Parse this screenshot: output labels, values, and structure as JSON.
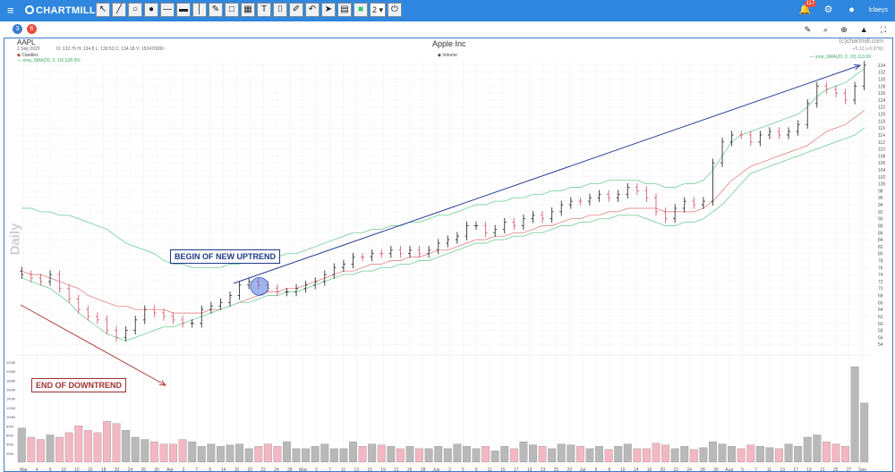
{
  "app": {
    "logo": "CHARTMILL"
  },
  "toolbar": {
    "tools": [
      {
        "name": "select-tool",
        "glyph": "↖"
      },
      {
        "name": "line-tool",
        "glyph": "╱"
      },
      {
        "name": "circle-tool",
        "glyph": "○"
      },
      {
        "name": "disc-tool",
        "glyph": "●"
      },
      {
        "name": "hline-tool",
        "glyph": "—"
      },
      {
        "name": "segment-tool",
        "glyph": "▬"
      },
      {
        "name": "vline-tool",
        "glyph": "│"
      },
      {
        "name": "pencil-tool",
        "glyph": "✎"
      },
      {
        "name": "rect-tool",
        "glyph": "□"
      },
      {
        "name": "fill-tool",
        "glyph": "▦"
      },
      {
        "name": "text-tool",
        "glyph": "T"
      },
      {
        "name": "label-tool",
        "glyph": "⌷"
      },
      {
        "name": "arrow-tool",
        "glyph": "✐"
      },
      {
        "name": "undo-tool",
        "glyph": "↶"
      },
      {
        "name": "marker-tool",
        "glyph": "➤"
      },
      {
        "name": "save-tool",
        "glyph": "▤"
      },
      {
        "name": "color-tool",
        "glyph": "■"
      }
    ],
    "timeframe": "2",
    "power_glyph": "⏻"
  },
  "topright": {
    "notifications": "117",
    "user": "lclaeys"
  },
  "subbar": {
    "chip1": "3",
    "chip2": "6"
  },
  "chart": {
    "ticker": "AAPL",
    "date": "1 Sep 2020",
    "ohlc": "O: 132.76  H: 134.8  L: 130.53  C: 134.18    V: 152470000",
    "title": "Apple Inc",
    "copyright": "(c)chartmill.com",
    "priceinfo": "+5.12 (+3.97%)",
    "legend_candles": "Candles",
    "legend_sma": "— sma_SMA(20, 2, 10) 128.9%",
    "legend_volume": "Volume",
    "legend_right": "— sma_SMA(20, 2, 10) 113.69",
    "watermark": "Daily",
    "annotation_up": "BEGIN OF NEW UPTREND",
    "annotation_down": "END OF DOWNTREND",
    "colors": {
      "up": "#333333",
      "down": "#d9607a",
      "vol_up": "#b9b9b9",
      "vol_down": "#f2b7c2",
      "bb_outer": "#7fd3a0",
      "bb_mid": "#e07070",
      "arrow_up": "#2c3e9a",
      "arrow_down": "#b03a3a"
    }
  },
  "chart_data": {
    "type": "candlestick",
    "title": "Apple Inc",
    "x_labels": [
      "Mar",
      "4",
      "6",
      "10",
      "12",
      "16",
      "18",
      "20",
      "24",
      "26",
      "30",
      "Apr",
      "3",
      "7",
      "9",
      "14",
      "16",
      "20",
      "22",
      "24",
      "28",
      "May",
      "5",
      "7",
      "11",
      "13",
      "15",
      "19",
      "21",
      "26",
      "28",
      "Jun",
      "3",
      "5",
      "9",
      "11",
      "15",
      "17",
      "19",
      "23",
      "25",
      "29",
      "Jul",
      "6",
      "8",
      "10",
      "14",
      "16",
      "20",
      "22",
      "24",
      "28",
      "30",
      "Aug",
      "5",
      "7",
      "11",
      "13",
      "17",
      "19",
      "21",
      "25",
      "27",
      "Sep"
    ],
    "y_ticks": [
      54,
      56,
      58,
      60,
      62,
      64,
      66,
      68,
      70,
      72,
      74,
      76,
      78,
      80,
      82,
      84,
      86,
      88,
      90,
      92,
      94,
      96,
      98,
      100,
      102,
      104,
      106,
      108,
      110,
      112,
      114,
      116,
      118,
      120,
      122,
      124,
      126,
      128,
      130,
      132,
      134
    ],
    "ylim": [
      52,
      135
    ],
    "volume_ticks": [
      "20M",
      "40M",
      "60M",
      "80M",
      "100M",
      "120M",
      "140M",
      "160M",
      "180M",
      "200M",
      "220M"
    ],
    "close": [
      74,
      73,
      72,
      74,
      70,
      67,
      64,
      62,
      61,
      58,
      56,
      58,
      61,
      64,
      63,
      62,
      61,
      60,
      60,
      64,
      65,
      66,
      68,
      71,
      72,
      71,
      70,
      69,
      69,
      70,
      71,
      72,
      74,
      76,
      77,
      79,
      79,
      80,
      80,
      81,
      80,
      81,
      80,
      81,
      83,
      84,
      85,
      88,
      88,
      86,
      87,
      89,
      88,
      90,
      91,
      90,
      92,
      94,
      95,
      95,
      96,
      97,
      96,
      97,
      99,
      98,
      96,
      92,
      90,
      93,
      95,
      94,
      95,
      106,
      112,
      114,
      114,
      112,
      114,
      115,
      114,
      115,
      117,
      123,
      128,
      127,
      126,
      124,
      128,
      134
    ],
    "up": [
      1,
      0,
      0,
      1,
      0,
      0,
      0,
      0,
      0,
      0,
      0,
      1,
      1,
      1,
      0,
      0,
      0,
      0,
      1,
      1,
      1,
      1,
      1,
      1,
      1,
      0,
      0,
      0,
      1,
      1,
      1,
      1,
      1,
      1,
      1,
      1,
      0,
      1,
      0,
      1,
      0,
      1,
      0,
      1,
      1,
      1,
      1,
      1,
      1,
      0,
      1,
      1,
      0,
      1,
      1,
      0,
      1,
      1,
      1,
      0,
      1,
      1,
      0,
      1,
      1,
      0,
      0,
      0,
      0,
      1,
      1,
      0,
      1,
      1,
      1,
      1,
      0,
      0,
      1,
      1,
      0,
      1,
      1,
      1,
      1,
      0,
      0,
      0,
      1,
      1
    ],
    "volume": [
      75,
      55,
      50,
      60,
      55,
      65,
      80,
      70,
      65,
      90,
      85,
      70,
      55,
      50,
      45,
      40,
      40,
      50,
      45,
      35,
      40,
      35,
      38,
      40,
      30,
      35,
      40,
      35,
      45,
      30,
      30,
      35,
      40,
      30,
      30,
      45,
      35,
      40,
      38,
      35,
      30,
      35,
      30,
      30,
      35,
      30,
      40,
      35,
      30,
      35,
      25,
      35,
      30,
      45,
      38,
      35,
      30,
      40,
      38,
      35,
      30,
      35,
      28,
      35,
      40,
      30,
      30,
      42,
      38,
      30,
      35,
      28,
      32,
      45,
      40,
      35,
      30,
      38,
      35,
      32,
      30,
      40,
      35,
      55,
      60,
      45,
      40,
      35,
      210,
      130
    ],
    "bb_upper": [
      93,
      93,
      92,
      92,
      91,
      91,
      90,
      89,
      88,
      87,
      85,
      83,
      82,
      81,
      80,
      78,
      77,
      77,
      76,
      76,
      76,
      76,
      77,
      77,
      78,
      78,
      79,
      79,
      80,
      80,
      81,
      82,
      83,
      84,
      85,
      86,
      86,
      87,
      87,
      88,
      88,
      89,
      89,
      90,
      91,
      91,
      92,
      93,
      94,
      94,
      95,
      95,
      96,
      96,
      97,
      97,
      98,
      98,
      99,
      99,
      100,
      100,
      101,
      101,
      101,
      101,
      100,
      100,
      99,
      99,
      100,
      100,
      101,
      104,
      108,
      112,
      114,
      115,
      116,
      117,
      118,
      119,
      120,
      122,
      125,
      127,
      128,
      129,
      131,
      133
    ],
    "bb_mid": [
      75,
      74,
      74,
      73,
      72,
      71,
      70,
      68,
      67,
      66,
      65,
      65,
      64,
      64,
      64,
      64,
      63,
      63,
      63,
      63,
      64,
      64,
      65,
      66,
      67,
      68,
      69,
      69,
      70,
      70,
      71,
      72,
      73,
      74,
      75,
      75,
      76,
      77,
      77,
      78,
      78,
      79,
      79,
      80,
      81,
      81,
      82,
      83,
      84,
      84,
      85,
      85,
      86,
      86,
      87,
      88,
      88,
      89,
      90,
      90,
      91,
      91,
      92,
      92,
      93,
      93,
      93,
      93,
      92,
      92,
      92,
      92,
      93,
      95,
      98,
      101,
      103,
      105,
      106,
      107,
      108,
      109,
      110,
      111,
      113,
      115,
      116,
      117,
      119,
      121
    ],
    "bb_lower": [
      73,
      72,
      71,
      70,
      68,
      66,
      63,
      61,
      59,
      57,
      56,
      55,
      56,
      57,
      58,
      59,
      59,
      60,
      61,
      62,
      63,
      64,
      65,
      66,
      66,
      67,
      68,
      68,
      69,
      69,
      70,
      71,
      72,
      73,
      74,
      74,
      75,
      75,
      76,
      76,
      77,
      77,
      78,
      78,
      79,
      80,
      81,
      82,
      83,
      83,
      84,
      84,
      85,
      85,
      86,
      86,
      87,
      88,
      88,
      89,
      89,
      90,
      90,
      91,
      91,
      91,
      90,
      89,
      88,
      88,
      89,
      89,
      90,
      92,
      94,
      97,
      100,
      103,
      104,
      105,
      106,
      107,
      108,
      109,
      110,
      111,
      112,
      113,
      114,
      116
    ]
  }
}
